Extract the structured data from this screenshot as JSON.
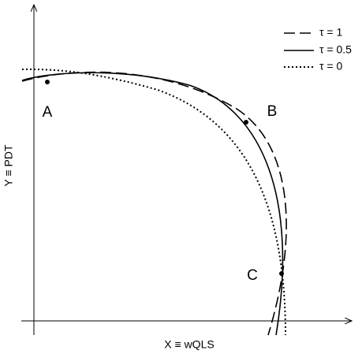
{
  "legend": [
    {
      "label": "τ = 1"
    },
    {
      "label": "τ = 0.5"
    },
    {
      "label": "τ = 0"
    }
  ],
  "axes": {
    "x_label": "X ≡ wQLS",
    "y_label": "Y ≡ PDT"
  },
  "points": [
    {
      "label": "A"
    },
    {
      "label": "B"
    },
    {
      "label": "C"
    }
  ]
}
